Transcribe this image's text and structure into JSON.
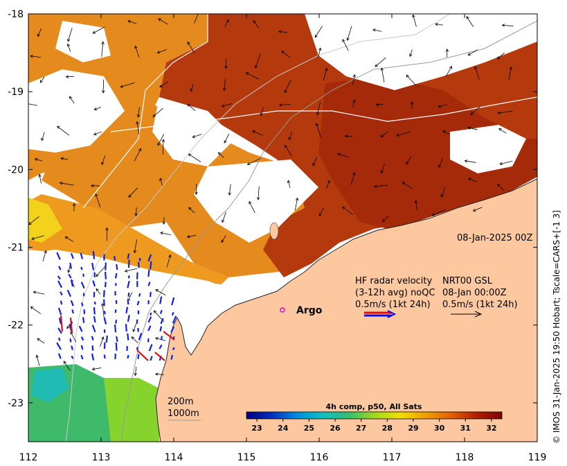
{
  "chart_data": {
    "type": "map",
    "title": "",
    "x_ticks": [
      "112",
      "113",
      "114",
      "115",
      "116",
      "117",
      "118",
      "119"
    ],
    "y_ticks": [
      "-18",
      "-19",
      "-20",
      "-21",
      "-22",
      "-23"
    ],
    "xlim": [
      112,
      119
    ],
    "ylim": [
      -23.5,
      -18
    ],
    "date_label": "08-Jan-2025 00Z",
    "radar": {
      "line1": "HF radar velocity",
      "line2": "(3-12h avg) noQC",
      "line3": "0.5m/s (1kt 24h)",
      "nrt_line1": "NRT00 GSL",
      "nrt_line2": "08-Jan 00:00Z",
      "nrt_line3": "0.5m/s (1kt 24h)"
    },
    "argo_label": "Argo",
    "isobaths": [
      "200m",
      "1000m"
    ],
    "colorbar": {
      "title": "4h comp, p50, All Sats",
      "ticks": [
        "23",
        "24",
        "25",
        "26",
        "27",
        "28",
        "29",
        "30",
        "31",
        "32"
      ],
      "range": [
        22.6,
        32.4
      ],
      "colors": [
        "#000080",
        "#0030c0",
        "#0090e0",
        "#10c0c0",
        "#30c070",
        "#a0d820",
        "#f0e000",
        "#f0a000",
        "#e06000",
        "#b02000",
        "#800000"
      ]
    },
    "credit": "© IMOS 31-Jan-2025 19:50 Hobart; Tscale=CARS+[-1 3]",
    "land_color": "#fdc8a0"
  }
}
